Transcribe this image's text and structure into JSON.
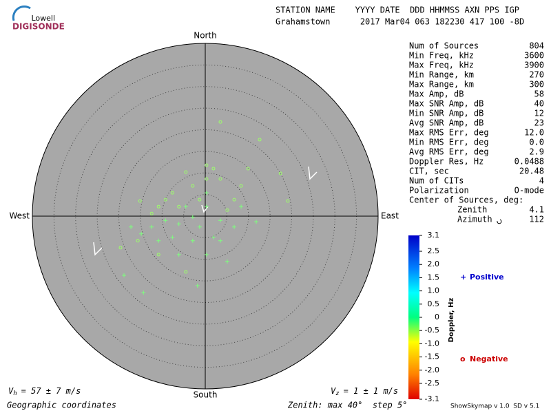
{
  "header": {
    "logo_top": "Lowell",
    "logo_bottom": "DIGISONDE",
    "line1": "STATION NAME    YYYY DATE  DDD HHMMSS AXN PPS IGP",
    "line2": "Grahamstown      2017 Mar04 063 182230 417 100 -8D"
  },
  "stats": {
    "rows": [
      [
        "Num of Sources",
        "804"
      ],
      [
        "Min Freq, kHz",
        "3600"
      ],
      [
        "Max Freq, kHz",
        "3900"
      ],
      [
        "Min Range, km",
        "270"
      ],
      [
        "Max Range, km",
        "300"
      ],
      [
        "Max Amp, dB",
        "58"
      ],
      [
        "Max SNR Amp, dB",
        "40"
      ],
      [
        "Min SNR Amp, dB",
        "12"
      ],
      [
        "Avg SNR Amp, dB",
        "23"
      ],
      [
        "Max RMS Err, deg",
        "12.0"
      ],
      [
        "Min RMS Err, deg",
        "0.0"
      ],
      [
        "Avg RMS Err, deg",
        "2.9"
      ],
      [
        "Doppler Res, Hz",
        "0.0488"
      ],
      [
        "CIT, sec",
        "20.48"
      ],
      [
        "Num of CITs",
        "4"
      ],
      [
        "Polarization",
        "O-mode"
      ]
    ],
    "center_title": "Center of Sources, deg:",
    "center_rows": [
      [
        "Zenith",
        "4.1"
      ],
      [
        "Azimuth",
        "112"
      ]
    ]
  },
  "footer": {
    "vh_symbol": "V",
    "vh_sub": "h",
    "vh_text": "= 57 ± 7 m/s",
    "vz_symbol": "V",
    "vz_sub": "z",
    "vz_text": "= 1 ± 1 m/s",
    "coords": "Geographic coordinates",
    "zenith": "Zenith: max 40°  step 5°",
    "version": "ShowSkymap v 1.0  SD v 5.1"
  },
  "chart_data": {
    "type": "scatter",
    "directions": {
      "north": "North",
      "south": "South",
      "east": "East",
      "west": "West"
    },
    "rlim": [
      0,
      40
    ],
    "rticks": [
      5,
      10,
      15,
      20,
      25,
      30,
      35
    ],
    "series": [
      {
        "name": "Positive",
        "marker": "+",
        "color": "#7dff7d",
        "legend_color": "#0000cc",
        "x": [
          -14.3,
          -1.8,
          -18.8,
          -6.1,
          0.3,
          5.1,
          11.8,
          -17.2,
          -4.5,
          0.3,
          3.5,
          -7.6,
          -2.9,
          1.9,
          -9.2,
          -1.3,
          -10.8,
          -14.8,
          3.5,
          0.3,
          6.7,
          -6.1,
          -2.9,
          -12.4,
          8.3
        ],
        "y": [
          -17.7,
          -16.1,
          -13.7,
          -8.9,
          -8.9,
          -10.5,
          -1.3,
          -2.5,
          2.2,
          2.2,
          -1.0,
          -4.9,
          -5.7,
          -4.9,
          -1.0,
          -2.5,
          -5.7,
          -4.1,
          -5.7,
          5.4,
          -2.5,
          -1.8,
          -0.2,
          -2.5,
          2.2
        ]
      },
      {
        "name": "Negative",
        "marker": "o",
        "color": "#9cff6a",
        "legend_color": "#cc0000",
        "x": [
          3.5,
          12.6,
          17.4,
          19.1,
          -15.1,
          0.3,
          -4.5,
          3.5,
          6.7,
          -7.6,
          -10.8,
          -2.9,
          -6.1,
          0.3,
          8.3,
          -12.4,
          -9.2,
          -1.3,
          -19.6,
          -15.6,
          -10.8,
          -4.5,
          5.1,
          1.9,
          9.9
        ],
        "y": [
          21.8,
          17.7,
          9.9,
          3.5,
          3.5,
          11.8,
          10.2,
          8.6,
          3.8,
          5.4,
          2.2,
          7.0,
          2.2,
          8.6,
          7.0,
          0.6,
          3.8,
          3.8,
          -7.3,
          -5.7,
          -8.9,
          -12.9,
          1.4,
          11.0,
          11.0
        ]
      }
    ],
    "colorbar": {
      "label": "Doppler, Hz",
      "lim": [
        -3.1,
        3.1
      ],
      "ticks": [
        3.1,
        2.5,
        {
          "value": 2,
          "label": "2.0"
        },
        1.5,
        {
          "value": 1,
          "label": "1.0"
        },
        0.5,
        0,
        -0.5,
        {
          "value": -1,
          "label": "-1.0"
        },
        -1.5,
        {
          "value": -2,
          "label": "-2.0"
        },
        -2.5,
        -3.1
      ]
    }
  }
}
